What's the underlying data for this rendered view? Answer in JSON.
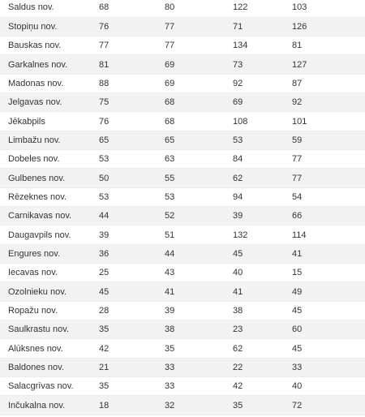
{
  "table": {
    "rows": [
      [
        "Saldus nov.",
        68,
        80,
        122,
        103
      ],
      [
        "Stopiņu nov.",
        76,
        77,
        71,
        126
      ],
      [
        "Bauskas nov.",
        77,
        77,
        134,
        81
      ],
      [
        "Garkalnes nov.",
        81,
        69,
        73,
        127
      ],
      [
        "Madonas nov.",
        88,
        69,
        92,
        87
      ],
      [
        "Jelgavas nov.",
        75,
        68,
        69,
        92
      ],
      [
        "Jēkabpils",
        76,
        68,
        108,
        101
      ],
      [
        "Limbažu nov.",
        65,
        65,
        53,
        59
      ],
      [
        "Dobeles nov.",
        53,
        63,
        84,
        77
      ],
      [
        "Gulbenes nov.",
        50,
        55,
        62,
        77
      ],
      [
        "Rēzeknes nov.",
        53,
        53,
        94,
        54
      ],
      [
        "Carnikavas nov.",
        44,
        52,
        39,
        66
      ],
      [
        "Daugavpils nov.",
        39,
        51,
        132,
        114
      ],
      [
        "Engures nov.",
        36,
        44,
        45,
        41
      ],
      [
        "Iecavas nov.",
        25,
        43,
        40,
        15
      ],
      [
        "Ozolnieku nov.",
        45,
        41,
        41,
        49
      ],
      [
        "Ropažu nov.",
        28,
        39,
        38,
        45
      ],
      [
        "Saulkrastu nov.",
        35,
        38,
        23,
        60
      ],
      [
        "Alūksnes nov.",
        42,
        35,
        62,
        45
      ],
      [
        "Baldones nov.",
        21,
        33,
        22,
        33
      ],
      [
        "Salacgrīvas nov.",
        35,
        33,
        42,
        40
      ],
      [
        "Inčukalna nov.",
        18,
        32,
        35,
        72
      ]
    ]
  }
}
